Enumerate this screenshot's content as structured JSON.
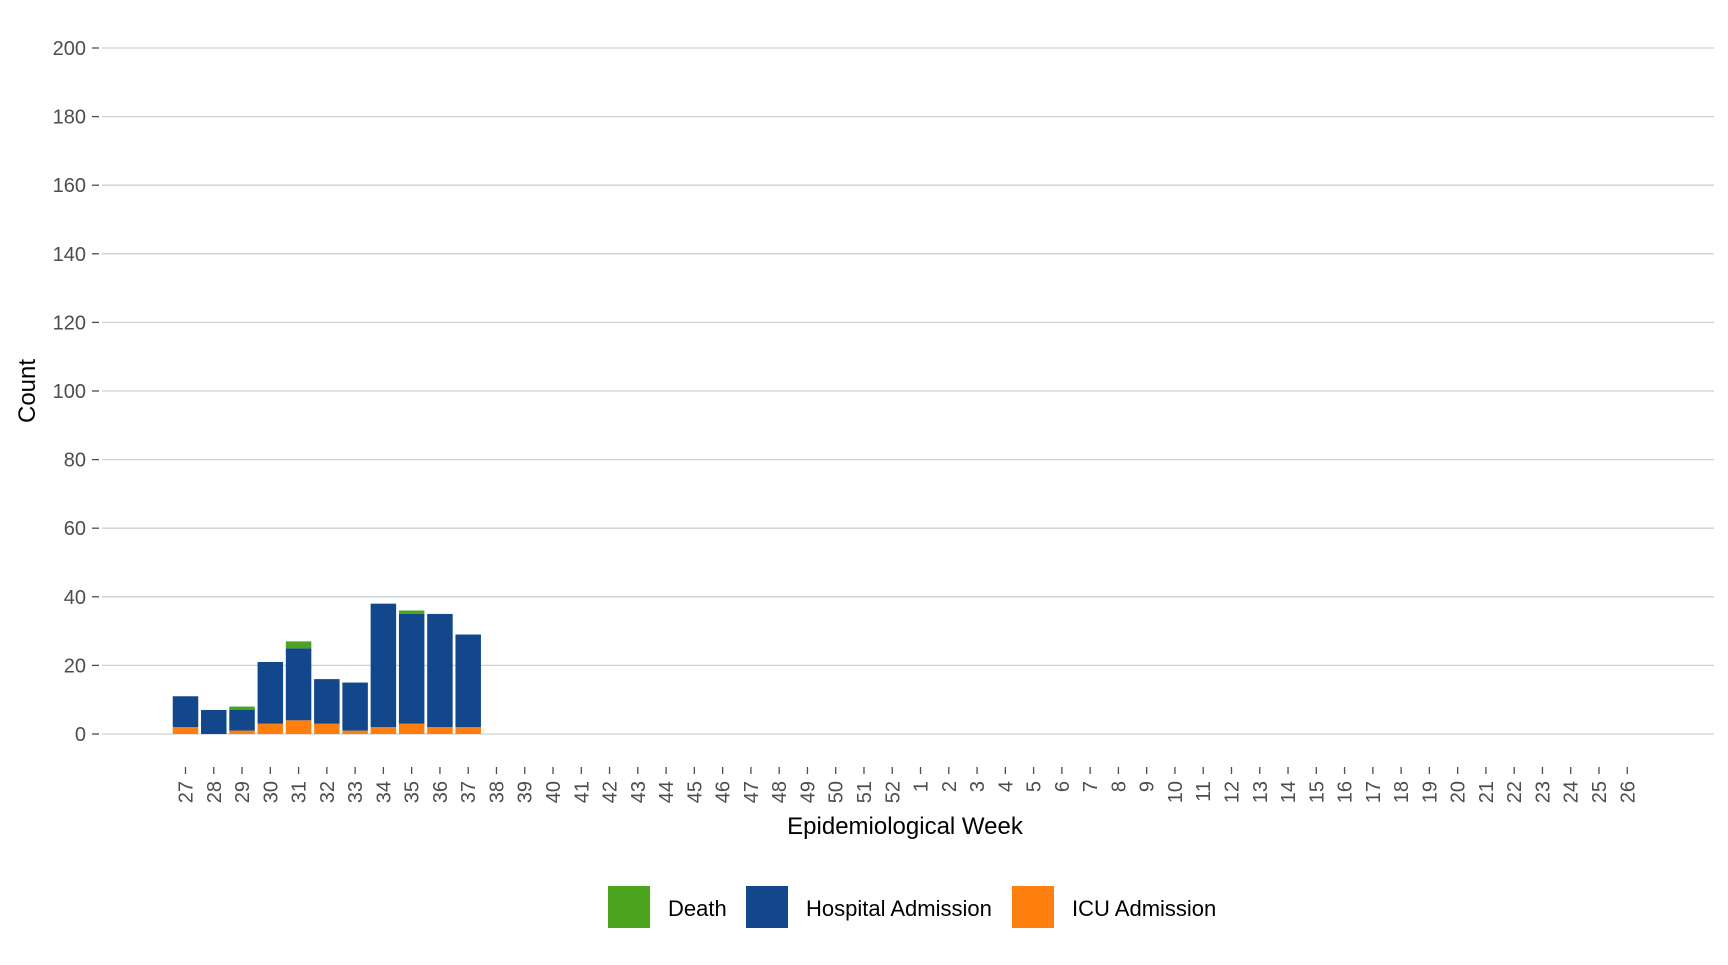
{
  "chart_data": {
    "type": "bar",
    "stacked": true,
    "title": "",
    "xlabel": "Epidemiological Week",
    "ylabel": "Count",
    "ylim": [
      0,
      200
    ],
    "yticks": [
      0,
      20,
      40,
      60,
      80,
      100,
      120,
      140,
      160,
      180,
      200
    ],
    "grid": "horizontal",
    "legend_position": "bottom",
    "categories": [
      "27",
      "28",
      "29",
      "30",
      "31",
      "32",
      "33",
      "34",
      "35",
      "36",
      "37",
      "38",
      "39",
      "40",
      "41",
      "42",
      "43",
      "44",
      "45",
      "46",
      "47",
      "48",
      "49",
      "50",
      "51",
      "52",
      "1",
      "2",
      "3",
      "4",
      "5",
      "6",
      "7",
      "8",
      "9",
      "10",
      "11",
      "12",
      "13",
      "14",
      "15",
      "16",
      "17",
      "18",
      "19",
      "20",
      "21",
      "22",
      "23",
      "24",
      "25",
      "26"
    ],
    "series": [
      {
        "name": "ICU Admission",
        "color": "#FF7F0E",
        "values": [
          2,
          0,
          1,
          3,
          4,
          3,
          1,
          2,
          3,
          2,
          2,
          0,
          0,
          0,
          0,
          0,
          0,
          0,
          0,
          0,
          0,
          0,
          0,
          0,
          0,
          0,
          0,
          0,
          0,
          0,
          0,
          0,
          0,
          0,
          0,
          0,
          0,
          0,
          0,
          0,
          0,
          0,
          0,
          0,
          0,
          0,
          0,
          0,
          0,
          0,
          0,
          0
        ]
      },
      {
        "name": "Hospital Admission",
        "color": "#13478C",
        "values": [
          9,
          7,
          6,
          18,
          21,
          13,
          14,
          36,
          32,
          33,
          27,
          0,
          0,
          0,
          0,
          0,
          0,
          0,
          0,
          0,
          0,
          0,
          0,
          0,
          0,
          0,
          0,
          0,
          0,
          0,
          0,
          0,
          0,
          0,
          0,
          0,
          0,
          0,
          0,
          0,
          0,
          0,
          0,
          0,
          0,
          0,
          0,
          0,
          0,
          0,
          0,
          0
        ]
      },
      {
        "name": "Death",
        "color": "#4AA41D",
        "values": [
          0,
          0,
          1,
          0,
          2,
          0,
          0,
          0,
          1,
          0,
          0,
          0,
          0,
          0,
          0,
          0,
          0,
          0,
          0,
          0,
          0,
          0,
          0,
          0,
          0,
          0,
          0,
          0,
          0,
          0,
          0,
          0,
          0,
          0,
          0,
          0,
          0,
          0,
          0,
          0,
          0,
          0,
          0,
          0,
          0,
          0,
          0,
          0,
          0,
          0,
          0,
          0
        ]
      }
    ],
    "legend": [
      {
        "label": "Death",
        "color": "#4AA41D"
      },
      {
        "label": "Hospital Admission",
        "color": "#13478C"
      },
      {
        "label": "ICU Admission",
        "color": "#FF7F0E"
      }
    ]
  }
}
